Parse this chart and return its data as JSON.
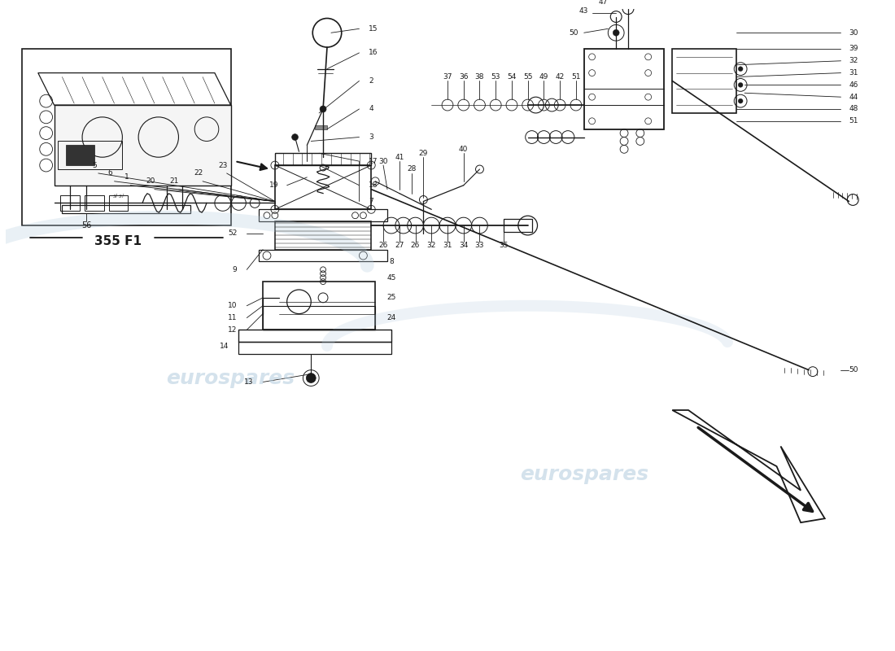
{
  "bg_color": "#ffffff",
  "line_color": "#1a1a1a",
  "watermark_color": "#b8cfe0",
  "watermark_text": "eurospares",
  "inset_label": "355 F1",
  "fig_width": 11.0,
  "fig_height": 8.0,
  "dpi": 100
}
